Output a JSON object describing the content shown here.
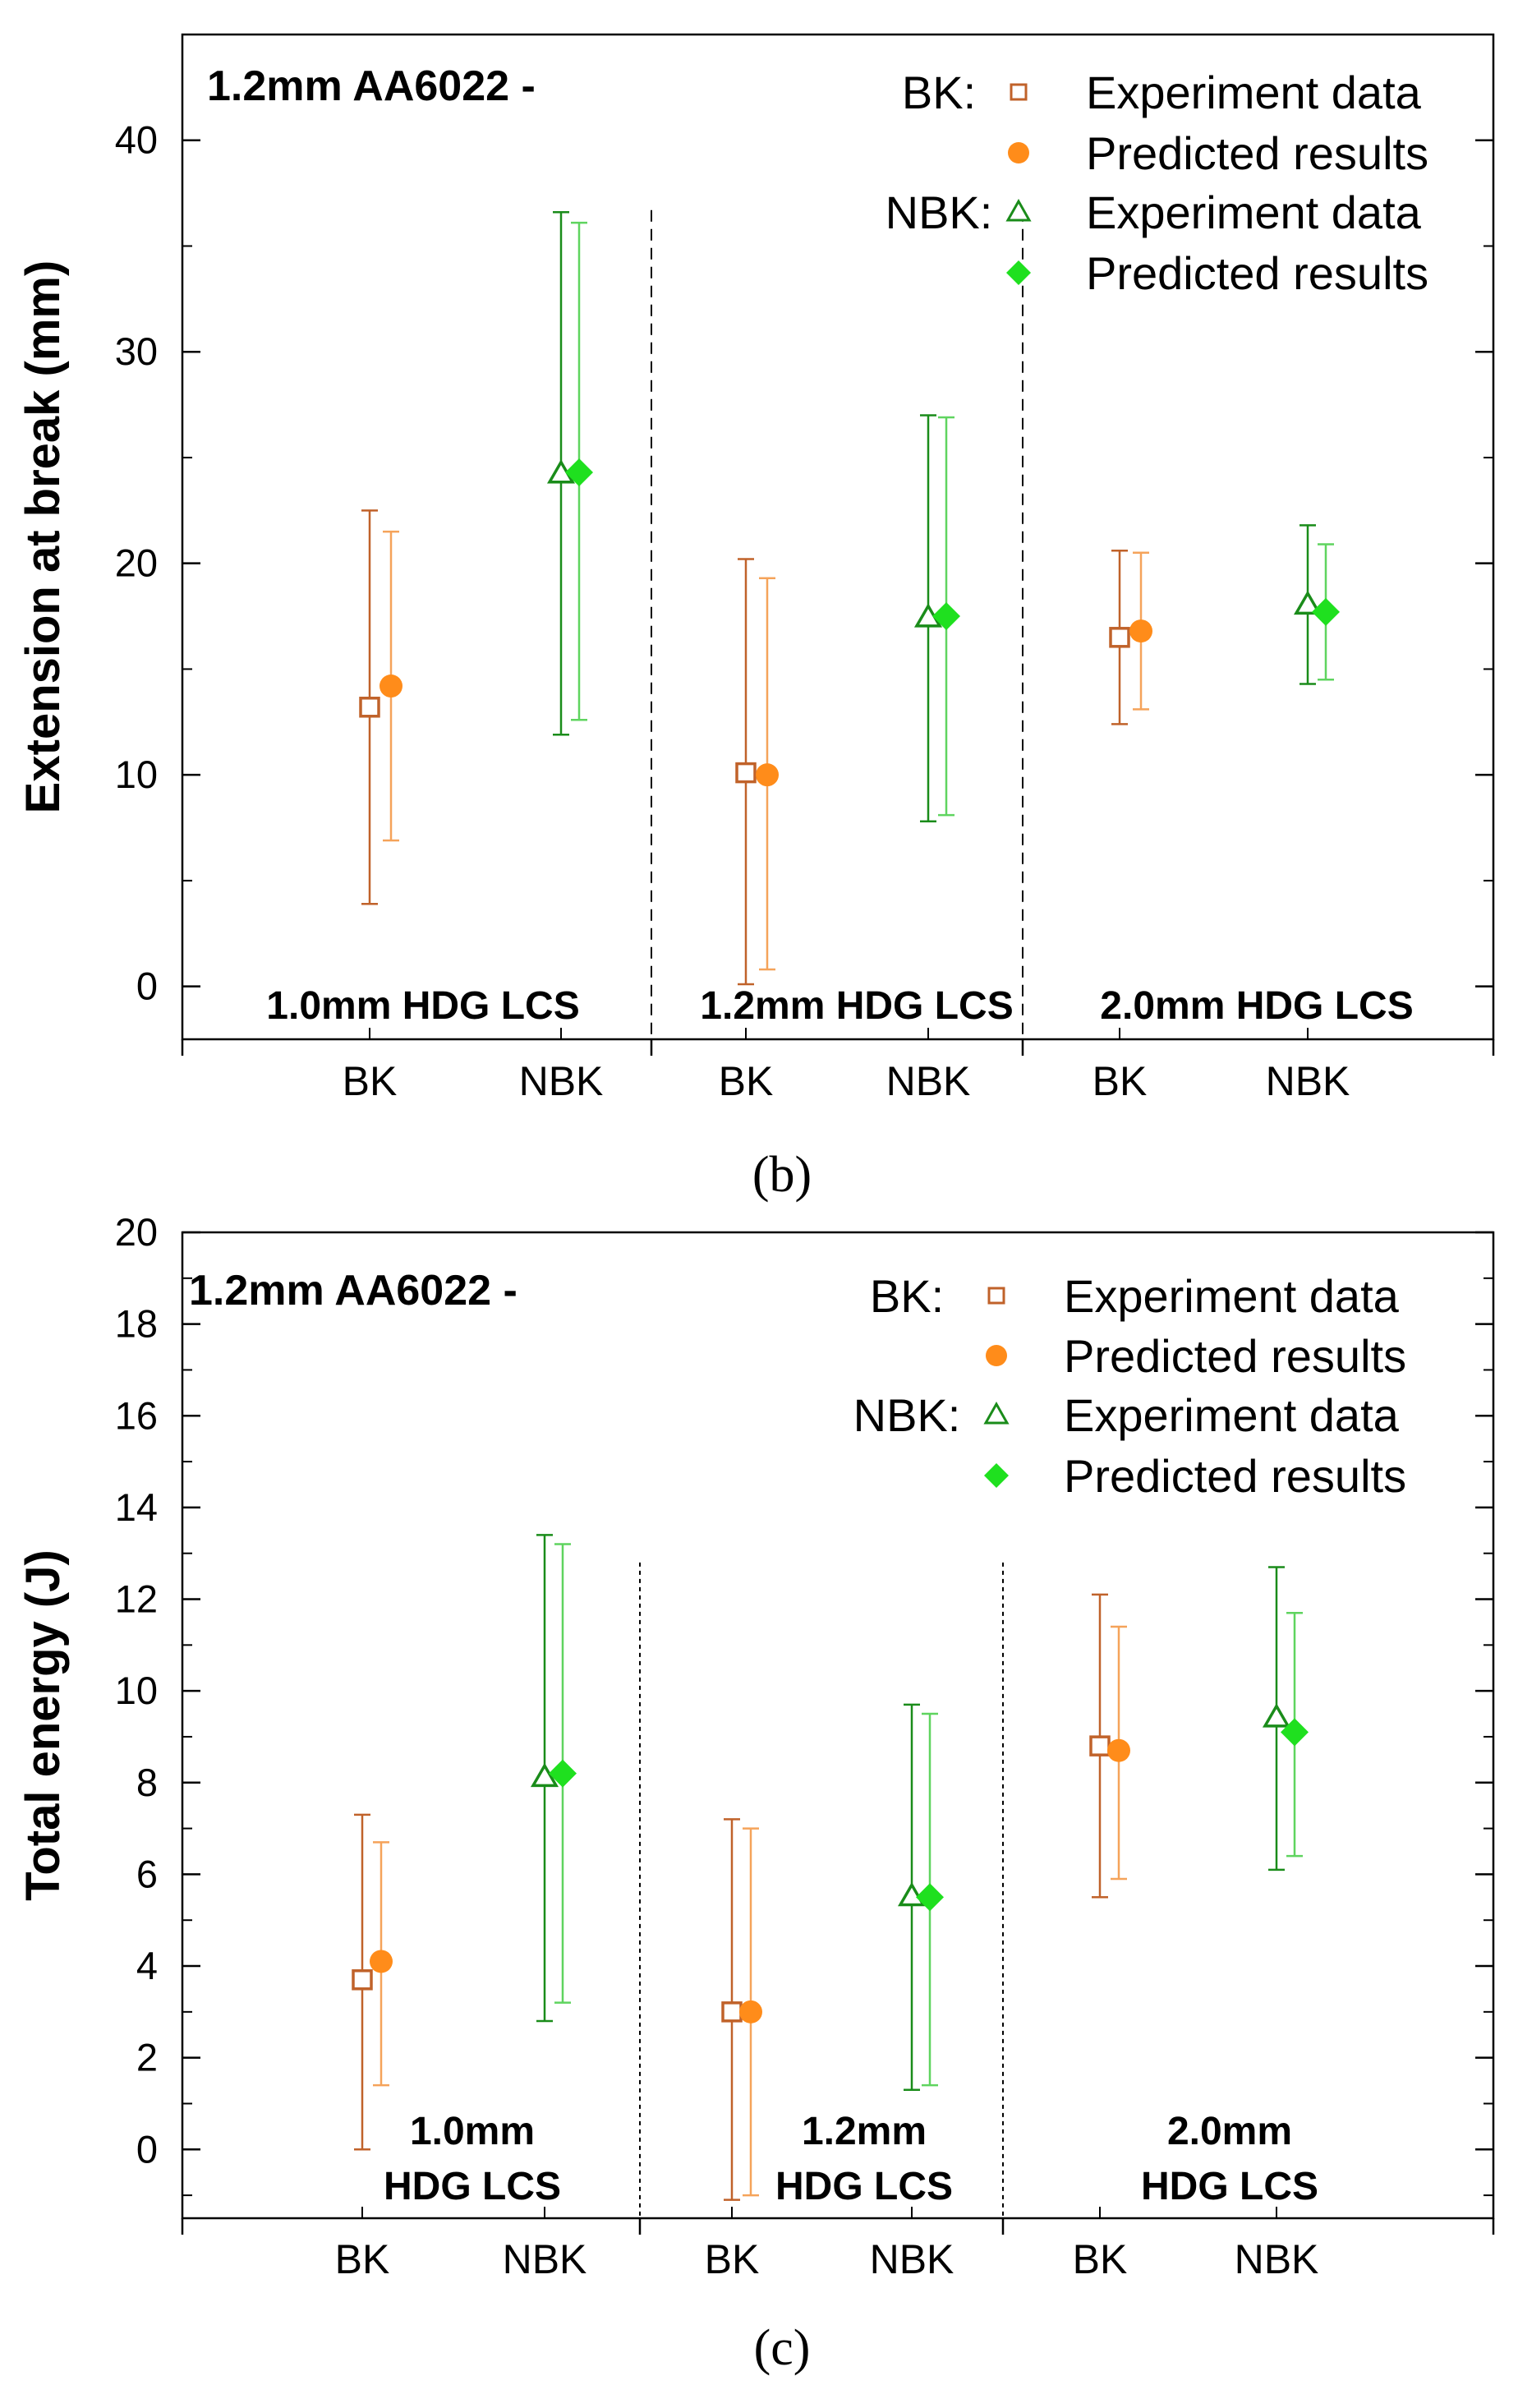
{
  "figure": {
    "caption_b": "(b)",
    "caption_c": "(c)"
  },
  "legend": {
    "bk_label": "BK:",
    "nbk_label": "NBK:",
    "experiment": "Experiment data",
    "predicted": "Predicted results"
  },
  "colors": {
    "bk_experiment": "#c0622a",
    "bk_predicted": "#ff8c1a",
    "bk_predicted_bar": "#f5a35a",
    "nbk_experiment": "#1a8c1a",
    "nbk_predicted": "#1fe01f",
    "nbk_predicted_bar": "#5fd45f"
  },
  "chart_data": [
    {
      "id": "b",
      "type": "scatter",
      "title": "1.2mm AA6022 -",
      "ylabel": "Extension at break (mm)",
      "xlabel": "",
      "ylim": [
        -2.5,
        45
      ],
      "yticks": [
        0,
        10,
        20,
        30,
        40
      ],
      "yminor": 5,
      "groups": [
        "1.0mm HDG LCS",
        "1.2mm HDG LCS",
        "2.0mm HDG LCS"
      ],
      "categories": [
        "BK",
        "NBK",
        "BK",
        "NBK",
        "BK",
        "NBK"
      ],
      "series": [
        {
          "name": "BK Experiment data",
          "values": [
            13.2,
            null,
            10.1,
            null,
            16.5,
            null
          ],
          "lower": [
            3.9,
            null,
            0.1,
            null,
            12.4,
            null
          ],
          "upper": [
            22.5,
            null,
            20.2,
            null,
            20.6,
            null
          ]
        },
        {
          "name": "BK Predicted results",
          "values": [
            14.2,
            null,
            10.0,
            null,
            16.8,
            null
          ],
          "lower": [
            6.9,
            null,
            0.8,
            null,
            13.1,
            null
          ],
          "upper": [
            21.5,
            null,
            19.3,
            null,
            20.5,
            null
          ]
        },
        {
          "name": "NBK Experiment data",
          "values": [
            null,
            24.2,
            null,
            17.4,
            null,
            18.0
          ],
          "lower": [
            null,
            11.9,
            null,
            7.8,
            null,
            14.3
          ],
          "upper": [
            null,
            36.6,
            null,
            27.0,
            null,
            21.8
          ]
        },
        {
          "name": "NBK Predicted results",
          "values": [
            null,
            24.3,
            null,
            17.5,
            null,
            17.7
          ],
          "lower": [
            null,
            12.6,
            null,
            8.1,
            null,
            14.5
          ],
          "upper": [
            null,
            36.1,
            null,
            26.9,
            null,
            20.9
          ]
        }
      ]
    },
    {
      "id": "c",
      "type": "scatter",
      "title": "1.2mm AA6022 -",
      "ylabel": "Total energy (J)",
      "xlabel": "",
      "ylim": [
        -1.5,
        20
      ],
      "yticks": [
        0,
        2,
        4,
        6,
        8,
        10,
        12,
        14,
        16,
        18,
        20
      ],
      "yminor": 1,
      "groups": [
        [
          "1.0mm",
          "HDG LCS"
        ],
        [
          "1.2mm",
          "HDG LCS"
        ],
        [
          "2.0mm",
          "HDG LCS"
        ]
      ],
      "categories": [
        "BK",
        "NBK",
        "BK",
        "NBK",
        "BK",
        "NBK"
      ],
      "series": [
        {
          "name": "BK Experiment data",
          "values": [
            3.7,
            null,
            3.0,
            null,
            8.8,
            null
          ],
          "lower": [
            0.0,
            null,
            -1.1,
            null,
            5.5,
            null
          ],
          "upper": [
            7.3,
            null,
            7.2,
            null,
            12.1,
            null
          ]
        },
        {
          "name": "BK Predicted results",
          "values": [
            4.1,
            null,
            3.0,
            null,
            8.7,
            null
          ],
          "lower": [
            1.4,
            null,
            -1.0,
            null,
            5.9,
            null
          ],
          "upper": [
            6.7,
            null,
            7.0,
            null,
            11.4,
            null
          ]
        },
        {
          "name": "NBK Experiment data",
          "values": [
            null,
            8.1,
            null,
            5.5,
            null,
            9.4
          ],
          "lower": [
            null,
            2.8,
            null,
            1.3,
            null,
            6.1
          ],
          "upper": [
            null,
            13.4,
            null,
            9.7,
            null,
            12.7
          ]
        },
        {
          "name": "NBK Predicted results",
          "values": [
            null,
            8.2,
            null,
            5.5,
            null,
            9.1
          ],
          "lower": [
            null,
            3.2,
            null,
            1.4,
            null,
            6.4
          ],
          "upper": [
            null,
            13.2,
            null,
            9.5,
            null,
            11.7
          ]
        }
      ]
    }
  ]
}
